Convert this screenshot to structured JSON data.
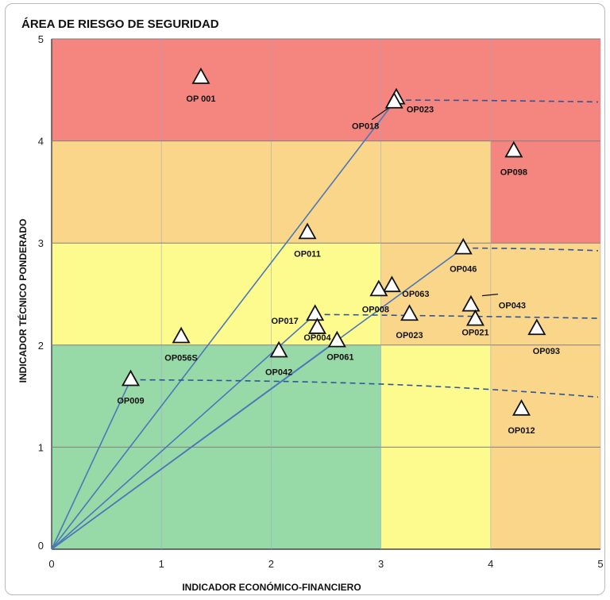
{
  "chart_data": {
    "type": "scatter",
    "title": "ÁREA DE RIESGO DE SEGURIDAD",
    "xlabel": "INDICADOR ECONÓMICO-FINANCIERO",
    "ylabel": "INDICADOR TÉCNICO PONDERADO",
    "xlim": [
      0,
      5
    ],
    "ylim": [
      0,
      5
    ],
    "xticks": [
      "0",
      "1",
      "2",
      "3",
      "4",
      "5"
    ],
    "yticks": [
      "0",
      "1",
      "2",
      "3",
      "4",
      "5"
    ],
    "grid": true,
    "colors": {
      "red": "#f4857f",
      "orange": "#fad68a",
      "yellow": "#fdfa8e",
      "green": "#98d9a8",
      "line": "#4a78b9",
      "grid": "#808080"
    },
    "zones": [
      {
        "color": "red",
        "x": [
          0,
          5
        ],
        "y": [
          4,
          5
        ]
      },
      {
        "color": "orange",
        "x": [
          0,
          4
        ],
        "y": [
          3,
          4
        ]
      },
      {
        "color": "red",
        "x": [
          4,
          5
        ],
        "y": [
          3,
          4
        ]
      },
      {
        "color": "yellow",
        "x": [
          0,
          3
        ],
        "y": [
          2,
          3
        ]
      },
      {
        "color": "orange",
        "x": [
          3,
          5
        ],
        "y": [
          2,
          3
        ]
      },
      {
        "color": "green",
        "x": [
          0,
          3
        ],
        "y": [
          0,
          2
        ]
      },
      {
        "color": "yellow",
        "x": [
          3,
          4
        ],
        "y": [
          0,
          2
        ]
      },
      {
        "color": "orange",
        "x": [
          4,
          5
        ],
        "y": [
          0,
          2
        ]
      }
    ],
    "points": [
      {
        "label": "OP 001",
        "x": 1.36,
        "y": 4.62
      },
      {
        "label": "OP023",
        "x": 3.14,
        "y": 4.42
      },
      {
        "label": "OP018",
        "x": 3.12,
        "y": 4.38
      },
      {
        "label": "OP098",
        "x": 4.21,
        "y": 3.9
      },
      {
        "label": "OP011",
        "x": 2.33,
        "y": 3.1
      },
      {
        "label": "OP046",
        "x": 3.75,
        "y": 2.95
      },
      {
        "label": "OP063",
        "x": 3.1,
        "y": 2.58
      },
      {
        "label": "OP008",
        "x": 2.98,
        "y": 2.54
      },
      {
        "label": "OP043",
        "x": 3.82,
        "y": 2.39
      },
      {
        "label": "OP017",
        "x": 2.4,
        "y": 2.3
      },
      {
        "label": "OP023",
        "x": 3.26,
        "y": 2.3
      },
      {
        "label": "OP021",
        "x": 3.86,
        "y": 2.25
      },
      {
        "label": "OP004",
        "x": 2.42,
        "y": 2.17
      },
      {
        "label": "OP093",
        "x": 4.42,
        "y": 2.16
      },
      {
        "label": "OP056S",
        "x": 1.18,
        "y": 2.08
      },
      {
        "label": "OP061",
        "x": 2.6,
        "y": 2.04
      },
      {
        "label": "OP042",
        "x": 2.07,
        "y": 1.94
      },
      {
        "label": "OP009",
        "x": 0.72,
        "y": 1.66
      },
      {
        "label": "OP012",
        "x": 4.28,
        "y": 1.37
      }
    ],
    "rays": [
      {
        "to": [
          3.12,
          4.38
        ]
      },
      {
        "to": [
          3.75,
          2.95
        ]
      },
      {
        "to": [
          2.6,
          2.04
        ]
      },
      {
        "to": [
          0.72,
          1.66
        ]
      },
      {
        "to": [
          2.4,
          2.3
        ]
      }
    ],
    "curves": [
      {
        "points": [
          [
            3.14,
            4.4
          ],
          [
            4.0,
            4.4
          ],
          [
            5.1,
            4.38
          ]
        ]
      },
      {
        "points": [
          [
            3.75,
            2.95
          ],
          [
            4.4,
            2.95
          ],
          [
            5.1,
            2.92
          ]
        ]
      },
      {
        "points": [
          [
            2.4,
            2.3
          ],
          [
            3.5,
            2.29
          ],
          [
            5.1,
            2.26
          ]
        ]
      },
      {
        "points": [
          [
            0.72,
            1.66
          ],
          [
            2.5,
            1.65
          ],
          [
            3.5,
            1.62
          ],
          [
            5.1,
            1.48
          ]
        ]
      }
    ]
  }
}
